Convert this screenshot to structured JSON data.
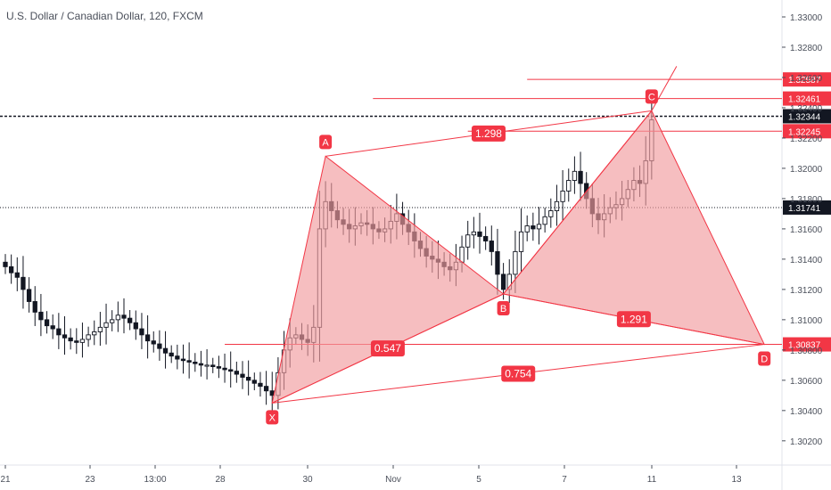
{
  "title": "U.S. Dollar / Canadian Dollar, 120, FXCM",
  "colors": {
    "pattern": "#f23645",
    "fill": "#f19b9e",
    "candle": "#131722",
    "grid": "#e0e3eb",
    "axis_text": "#4a4f5a",
    "tag_dark": "#131722"
  },
  "chart_data": {
    "type": "candlestick",
    "title": "U.S. Dollar / Canadian Dollar, 120, FXCM",
    "ylim": [
      1.3004,
      1.331
    ],
    "y_ticks": [
      "1.33000",
      "1.32800",
      "1.32600",
      "1.32400",
      "1.32200",
      "1.32000",
      "1.31800",
      "1.31600",
      "1.31400",
      "1.31200",
      "1.31000",
      "1.30800",
      "1.30600",
      "1.30400",
      "1.30200"
    ],
    "x_ticks": [
      "21",
      "23",
      "13:00",
      "28",
      "30",
      "Nov",
      "5",
      "7",
      "11",
      "13"
    ],
    "close_series": [
      1.3135,
      1.3131,
      1.3128,
      1.312,
      1.3112,
      1.3105,
      1.31,
      1.3096,
      1.3094,
      1.309,
      1.3088,
      1.3086,
      1.3085,
      1.3087,
      1.309,
      1.3092,
      1.3095,
      1.3098,
      1.31,
      1.3103,
      1.3101,
      1.3098,
      1.3094,
      1.309,
      1.3086,
      1.3084,
      1.3081,
      1.3078,
      1.3076,
      1.3074,
      1.3073,
      1.3072,
      1.3071,
      1.307,
      1.307,
      1.3069,
      1.3068,
      1.3067,
      1.3066,
      1.3064,
      1.3062,
      1.306,
      1.3058,
      1.3056,
      1.3053,
      1.305,
      1.3065,
      1.308,
      1.3088,
      1.309,
      1.3087,
      1.3085,
      1.3095,
      1.316,
      1.3178,
      1.3172,
      1.3166,
      1.3163,
      1.316,
      1.3162,
      1.3164,
      1.3163,
      1.316,
      1.3158,
      1.316,
      1.3165,
      1.317,
      1.3163,
      1.3158,
      1.3152,
      1.3147,
      1.3142,
      1.314,
      1.3138,
      1.3135,
      1.3133,
      1.3138,
      1.3148,
      1.3156,
      1.3158,
      1.3155,
      1.3152,
      1.3145,
      1.313,
      1.312,
      1.313,
      1.3145,
      1.3158,
      1.3162,
      1.316,
      1.3163,
      1.3168,
      1.3172,
      1.3178,
      1.3185,
      1.3192,
      1.3198,
      1.319,
      1.318,
      1.317,
      1.3166,
      1.317,
      1.3174,
      1.3176,
      1.318,
      1.3186,
      1.3192,
      1.319,
      1.3205,
      1.3232
    ],
    "pattern": {
      "name": "harmonic XABCD",
      "points": [
        {
          "label": "X",
          "index": 45,
          "price": 1.3045
        },
        {
          "label": "A",
          "index": 54,
          "price": 1.3208
        },
        {
          "label": "B",
          "index": 84,
          "price": 1.3117
        },
        {
          "label": "C",
          "index": 109,
          "price": 1.3238
        },
        {
          "label": "D",
          "index": 128,
          "price": 1.30837
        }
      ],
      "ratios": [
        {
          "value": "0.547",
          "leg": "XB"
        },
        {
          "value": "1.298",
          "leg": "AC"
        },
        {
          "value": "1.291",
          "leg": "BD"
        },
        {
          "value": "0.754",
          "leg": "XD"
        }
      ]
    },
    "levels": [
      {
        "price": 1.32587,
        "label": "1.32587",
        "style": "solid",
        "from_index": 88
      },
      {
        "price": 1.32461,
        "label": "1.32461",
        "style": "solid",
        "from_index": 62
      },
      {
        "price": 1.32344,
        "label": "1.32344",
        "style": "dashed",
        "from_index": 0
      },
      {
        "price": 1.32245,
        "label": "1.32245",
        "style": "solid",
        "from_index": 78
      },
      {
        "price": 1.31741,
        "label": "1.31741",
        "style": "dotted",
        "from_index": 0
      },
      {
        "price": 1.30837,
        "label": "1.30837",
        "style": "solid",
        "from_index": 37
      }
    ]
  }
}
